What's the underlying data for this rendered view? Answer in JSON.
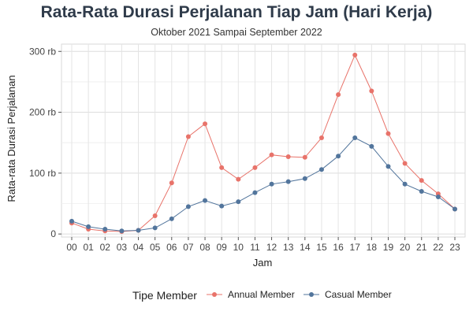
{
  "chart_data": {
    "type": "line",
    "title": "Rata-Rata Durasi Perjalanan Tiap Jam (Hari Kerja)",
    "subtitle": "Oktober 2021 Sampai September 2022",
    "xlabel": "Jam",
    "ylabel": "Rata-rata Durasi Perjalanan",
    "categories": [
      "00",
      "01",
      "02",
      "03",
      "04",
      "05",
      "06",
      "07",
      "08",
      "09",
      "10",
      "11",
      "12",
      "13",
      "14",
      "15",
      "16",
      "17",
      "18",
      "19",
      "20",
      "21",
      "22",
      "23"
    ],
    "ylim": [
      -5000,
      312000
    ],
    "yticks": [
      0,
      100000,
      200000,
      300000
    ],
    "ytick_labels": [
      "0",
      "100 rb",
      "200 rb",
      "300 rb"
    ],
    "grid": true,
    "legend_position": "bottom",
    "legend_title": "Tipe Member",
    "series": [
      {
        "name": "Annual Member",
        "color": "#e8736a",
        "values": [
          18000,
          8000,
          5000,
          4000,
          6000,
          30000,
          84000,
          160000,
          181000,
          109000,
          90000,
          109000,
          130000,
          127000,
          126000,
          158000,
          229000,
          294000,
          235000,
          165000,
          116000,
          88000,
          66000,
          41000
        ]
      },
      {
        "name": "Casual Member",
        "color": "#52759c",
        "values": [
          21000,
          12000,
          8000,
          5000,
          6000,
          10000,
          25000,
          45000,
          55000,
          46000,
          53000,
          68000,
          82000,
          86000,
          91000,
          106000,
          128000,
          158000,
          144000,
          111000,
          82000,
          70000,
          61000,
          41000
        ]
      }
    ]
  }
}
